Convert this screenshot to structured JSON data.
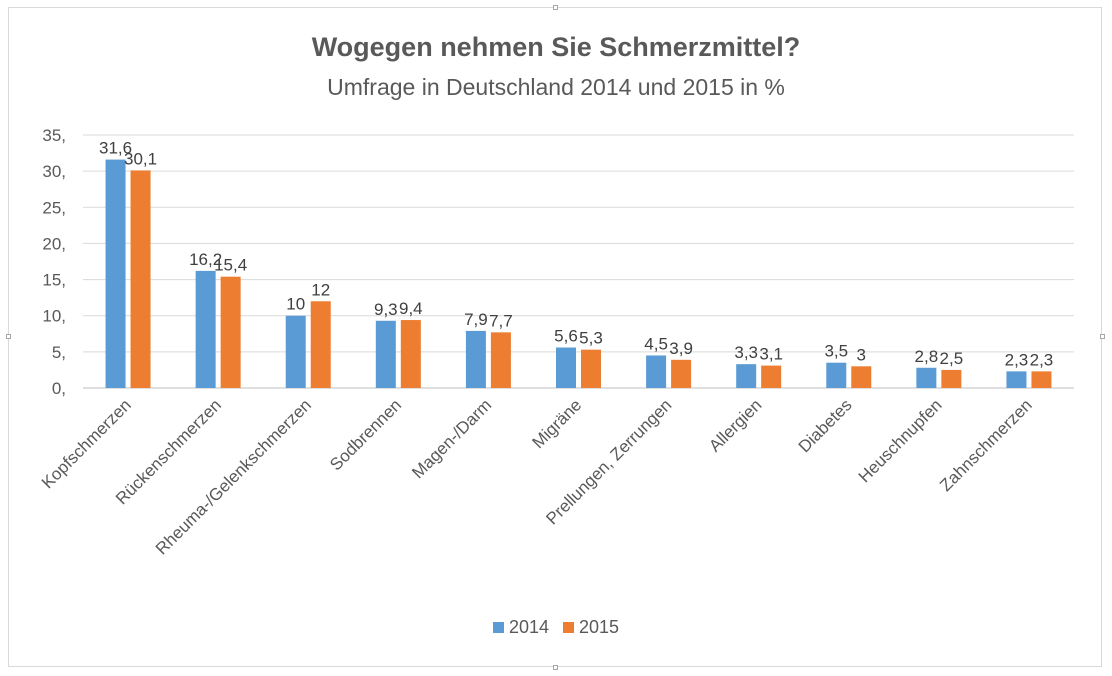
{
  "chart_data": {
    "type": "bar",
    "title": "Wogegen nehmen Sie Schmerzmittel?",
    "subtitle": "Umfrage in Deutschland 2014 und 2015 in %",
    "categories": [
      "Kopfschmerzen",
      "Rückenschmerzen",
      "Rheuma-/Gelenkschmerzen",
      "Sodbrennen",
      "Magen-/Darm",
      "Migräne",
      "Prellungen, Zerrungen",
      "Allergien",
      "Diabetes",
      "Heuschnupfen",
      "Zahnschmerzen"
    ],
    "series": [
      {
        "name": "2014",
        "color": "#5b9bd5",
        "values": [
          31.6,
          16.2,
          10,
          9.3,
          7.9,
          5.6,
          4.5,
          3.3,
          3.5,
          2.8,
          2.3
        ],
        "labels": [
          "31,6",
          "16,2",
          "10",
          "9,3",
          "7,9",
          "5,6",
          "4,5",
          "3,3",
          "3,5",
          "2,8",
          "2,3"
        ]
      },
      {
        "name": "2015",
        "color": "#ed7d31",
        "values": [
          30.1,
          15.4,
          12,
          9.4,
          7.7,
          5.3,
          3.9,
          3.1,
          3,
          2.5,
          2.3
        ],
        "labels": [
          "30,1",
          "15,4",
          "12",
          "9,4",
          "7,7",
          "5,3",
          "3,9",
          "3,1",
          "3",
          "2,5",
          "2,3"
        ]
      }
    ],
    "yticks": [
      0,
      5,
      10,
      15,
      20,
      25,
      30,
      35
    ],
    "ytick_labels": [
      "0,",
      "5,",
      "10,",
      "15,",
      "20,",
      "25,",
      "30,",
      "35,"
    ],
    "ylim": [
      0,
      35
    ],
    "grid": true,
    "legend": "bottom-center"
  }
}
